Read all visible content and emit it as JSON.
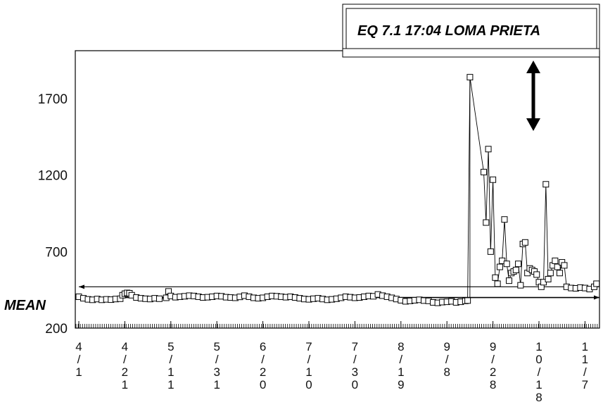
{
  "chart_data": {
    "type": "line",
    "title": "",
    "xlabel": "",
    "ylabel": "",
    "ylim": [
      200,
      2000
    ],
    "yticks": [
      200,
      700,
      1200,
      1700
    ],
    "x_start": "4/1",
    "x_end": "11/21",
    "x_ticks": [
      {
        "label": "4/1",
        "day": 0
      },
      {
        "label": "4/21",
        "day": 20
      },
      {
        "label": "5/11",
        "day": 40
      },
      {
        "label": "5/31",
        "day": 60
      },
      {
        "label": "6/20",
        "day": 80
      },
      {
        "label": "7/10",
        "day": 100
      },
      {
        "label": "7/30",
        "day": 120
      },
      {
        "label": "8/19",
        "day": 140
      },
      {
        "label": "9/8",
        "day": 160
      },
      {
        "label": "9/28",
        "day": 180
      },
      {
        "label": "10/18",
        "day": 200
      },
      {
        "label": "11/7",
        "day": 220
      }
    ],
    "mean": {
      "label": "MEAN",
      "value": 400,
      "upper_band": 470
    },
    "annotation": {
      "label": "EQ 7.1 17:04 LOMA PRIETA",
      "day": 201
    },
    "series": [
      {
        "points": [
          [
            0,
            405
          ],
          [
            2,
            395
          ],
          [
            4,
            388
          ],
          [
            6,
            385
          ],
          [
            8,
            390
          ],
          [
            10,
            385
          ],
          [
            12,
            388
          ],
          [
            14,
            386
          ],
          [
            16,
            390
          ],
          [
            18,
            392
          ],
          [
            19,
            415
          ],
          [
            20,
            425
          ],
          [
            21,
            430
          ],
          [
            22,
            428
          ],
          [
            23,
            415
          ],
          [
            25,
            400
          ],
          [
            27,
            395
          ],
          [
            29,
            392
          ],
          [
            31,
            390
          ],
          [
            33,
            395
          ],
          [
            35,
            392
          ],
          [
            38,
            398
          ],
          [
            39,
            440
          ],
          [
            40,
            410
          ],
          [
            42,
            402
          ],
          [
            44,
            405
          ],
          [
            46,
            408
          ],
          [
            48,
            412
          ],
          [
            50,
            410
          ],
          [
            52,
            405
          ],
          [
            54,
            400
          ],
          [
            56,
            402
          ],
          [
            58,
            405
          ],
          [
            60,
            410
          ],
          [
            62,
            408
          ],
          [
            64,
            402
          ],
          [
            66,
            400
          ],
          [
            68,
            398
          ],
          [
            70,
            404
          ],
          [
            72,
            412
          ],
          [
            74,
            405
          ],
          [
            76,
            398
          ],
          [
            78,
            395
          ],
          [
            80,
            398
          ],
          [
            82,
            405
          ],
          [
            84,
            410
          ],
          [
            86,
            408
          ],
          [
            88,
            405
          ],
          [
            90,
            402
          ],
          [
            92,
            405
          ],
          [
            94,
            400
          ],
          [
            96,
            395
          ],
          [
            98,
            390
          ],
          [
            100,
            388
          ],
          [
            102,
            392
          ],
          [
            104,
            395
          ],
          [
            106,
            390
          ],
          [
            108,
            385
          ],
          [
            110,
            388
          ],
          [
            112,
            392
          ],
          [
            114,
            398
          ],
          [
            116,
            405
          ],
          [
            118,
            402
          ],
          [
            120,
            398
          ],
          [
            122,
            400
          ],
          [
            124,
            405
          ],
          [
            126,
            410
          ],
          [
            128,
            408
          ],
          [
            130,
            420
          ],
          [
            132,
            412
          ],
          [
            134,
            405
          ],
          [
            136,
            398
          ],
          [
            138,
            390
          ],
          [
            140,
            382
          ],
          [
            142,
            375
          ],
          [
            144,
            378
          ],
          [
            146,
            382
          ],
          [
            148,
            385
          ],
          [
            150,
            380
          ],
          [
            152,
            378
          ],
          [
            154,
            368
          ],
          [
            156,
            365
          ],
          [
            158,
            370
          ],
          [
            160,
            372
          ],
          [
            162,
            375
          ],
          [
            164,
            368
          ],
          [
            166,
            372
          ],
          [
            168,
            378
          ],
          [
            169,
            380
          ],
          [
            170,
            1840
          ],
          [
            176,
            1220
          ],
          [
            177,
            890
          ],
          [
            178,
            1370
          ],
          [
            179,
            700
          ],
          [
            180,
            1170
          ],
          [
            181,
            530
          ],
          [
            182,
            490
          ],
          [
            183,
            600
          ],
          [
            184,
            640
          ],
          [
            185,
            910
          ],
          [
            186,
            620
          ],
          [
            187,
            510
          ],
          [
            188,
            560
          ],
          [
            189,
            570
          ],
          [
            190,
            580
          ],
          [
            191,
            620
          ],
          [
            192,
            480
          ],
          [
            193,
            750
          ],
          [
            194,
            760
          ],
          [
            195,
            560
          ],
          [
            196,
            590
          ],
          [
            197,
            580
          ],
          [
            198,
            570
          ],
          [
            199,
            550
          ],
          [
            200,
            500
          ],
          [
            201,
            470
          ],
          [
            202,
            500
          ],
          [
            203,
            1140
          ],
          [
            204,
            520
          ],
          [
            205,
            560
          ],
          [
            206,
            610
          ],
          [
            207,
            640
          ],
          [
            208,
            600
          ],
          [
            209,
            560
          ],
          [
            210,
            630
          ],
          [
            211,
            610
          ],
          [
            212,
            470
          ],
          [
            214,
            462
          ],
          [
            216,
            460
          ],
          [
            218,
            465
          ],
          [
            220,
            462
          ],
          [
            222,
            455
          ],
          [
            224,
            470
          ],
          [
            225,
            490
          ]
        ]
      }
    ]
  }
}
